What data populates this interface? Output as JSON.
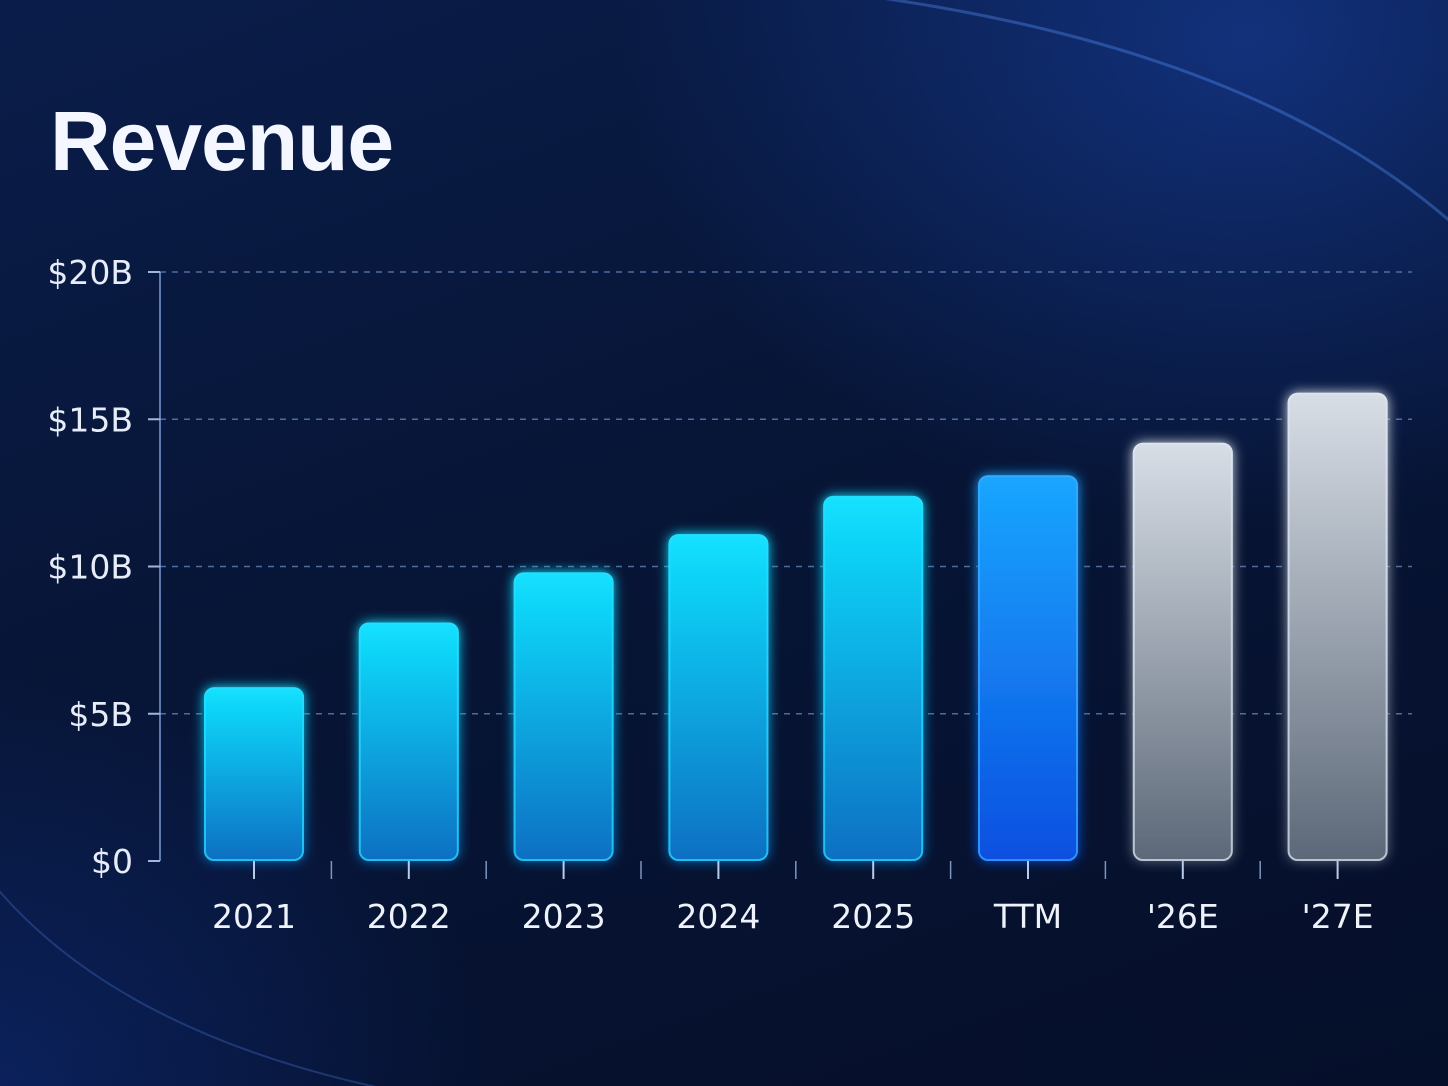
{
  "chart_data": {
    "type": "bar",
    "title": "Revenue",
    "xlabel": "",
    "ylabel": "",
    "categories": [
      "2021",
      "2022",
      "2023",
      "2024",
      "2025",
      "TTM",
      "'26E",
      "'27E"
    ],
    "values": [
      5.9,
      8.1,
      9.8,
      11.1,
      12.4,
      13.1,
      14.2,
      15.9
    ],
    "unit": "B",
    "ylim": [
      0,
      20
    ],
    "yticks": [
      0,
      5,
      10,
      15,
      20
    ],
    "ytick_labels": [
      "$0",
      "$5B",
      "$10B",
      "$15B",
      "$20B"
    ],
    "grid": true,
    "bar_kinds": [
      "actual",
      "actual",
      "actual",
      "actual",
      "actual",
      "ttm",
      "estimate",
      "estimate"
    ],
    "colors": {
      "actual_top": "#12e2ff",
      "actual_bottom": "#0a6fc2",
      "ttm_top": "#1aa6ff",
      "ttm_bottom": "#0b4fe0",
      "estimate_top": "#d8dee6",
      "estimate_bottom": "#5c6878",
      "axis": "#4aa8ff",
      "grid": "#5c7bb0"
    }
  }
}
